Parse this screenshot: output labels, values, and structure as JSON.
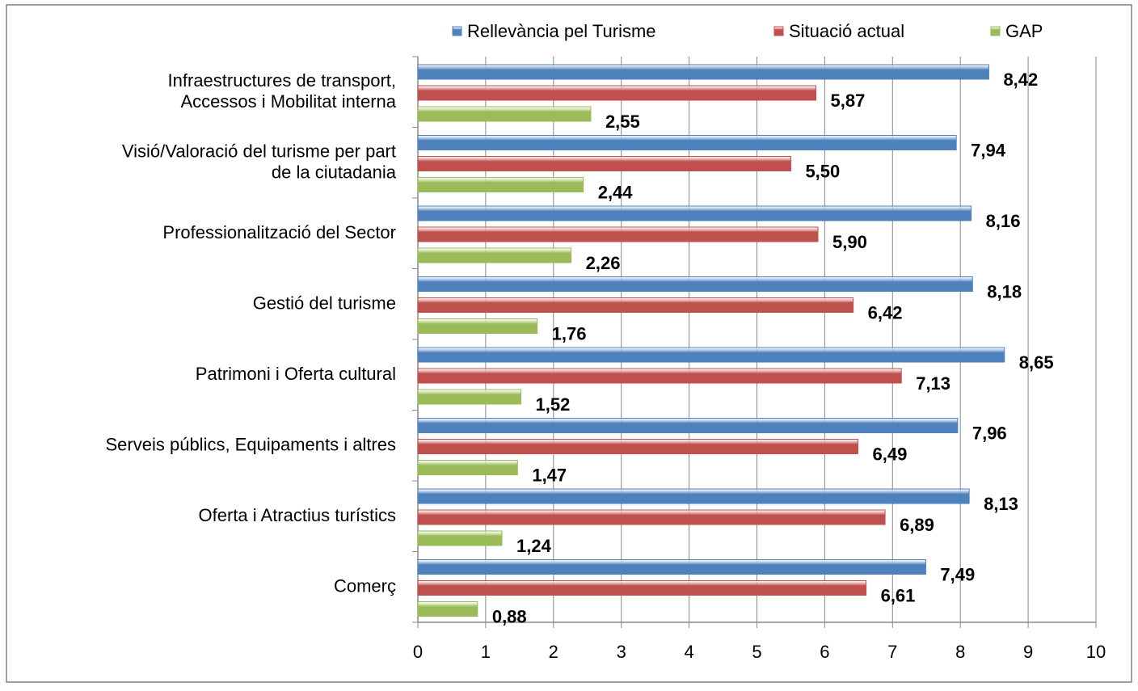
{
  "chart_data": {
    "type": "hbar",
    "categories": [
      "Infraestructures de transport,\nAccessos i Mobilitat interna",
      "Visió/Valoració del turisme per part\nde la ciutadania",
      "Professionalització del Sector",
      "Gestió del turisme",
      "Patrimoni i Oferta cultural",
      "Serveis públics, Equipaments i altres",
      "Oferta i Atractius turístics",
      "Comerç"
    ],
    "series": [
      {
        "name": "Rellevància pel Turisme",
        "color": "#4f81bd",
        "values": [
          8.42,
          7.94,
          8.16,
          8.18,
          8.65,
          7.96,
          8.13,
          7.49
        ],
        "value_labels": [
          "8,42",
          "7,94",
          "8,16",
          "8,18",
          "8,65",
          "7,96",
          "8,13",
          "7,49"
        ]
      },
      {
        "name": "Situació actual",
        "color": "#c0504d",
        "values": [
          5.87,
          5.5,
          5.9,
          6.42,
          7.13,
          6.49,
          6.89,
          6.61
        ],
        "value_labels": [
          "5,87",
          "5,50",
          "5,90",
          "6,42",
          "7,13",
          "6,49",
          "6,89",
          "6,61"
        ]
      },
      {
        "name": "GAP",
        "color": "#9bbb59",
        "values": [
          2.55,
          2.44,
          2.26,
          1.76,
          1.52,
          1.47,
          1.24,
          0.88
        ],
        "value_labels": [
          "2,55",
          "2,44",
          "2,26",
          "1,76",
          "1,52",
          "1,47",
          "1,24",
          "0,88"
        ]
      }
    ],
    "xlim": [
      0,
      10
    ],
    "xticks": [
      0,
      1,
      2,
      3,
      4,
      5,
      6,
      7,
      8,
      9,
      10
    ],
    "grid": true,
    "legend": "top"
  }
}
